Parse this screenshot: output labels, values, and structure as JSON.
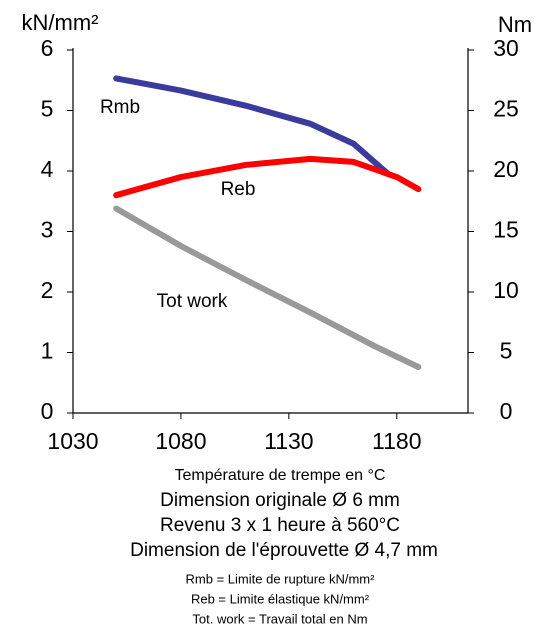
{
  "chart_data": {
    "type": "line",
    "y_label": "kN/mm²",
    "y2_label": "Nm",
    "x_label": "Température de trempe en °C",
    "subtitles": [
      "Dimension originale Ø 6 mm",
      "Revenu 3 x 1 heure à 560°C",
      "Dimension de l'éprouvette Ø 4,7 mm"
    ],
    "notes": [
      "Rmb = Limite de rupture kN/mm²",
      "Reb = Limite élastique kN/mm²",
      "Tot. work = Travail total en Nm"
    ],
    "xlim": [
      1030,
      1213
    ],
    "xticks": [
      1030,
      1080,
      1130,
      1180
    ],
    "ylim": [
      0,
      6
    ],
    "yticks": [
      0,
      1,
      2,
      3,
      4,
      5,
      6
    ],
    "y2lim": [
      0,
      30
    ],
    "y2ticks": [
      0,
      5,
      10,
      15,
      20,
      25,
      30
    ],
    "series": [
      {
        "name": "Rmb",
        "color": "#3b3b9c",
        "x": [
          1050,
          1080,
          1110,
          1140,
          1160,
          1176
        ],
        "values": [
          5.53,
          5.33,
          5.08,
          4.78,
          4.45,
          3.95
        ]
      },
      {
        "name": "Reb",
        "color": "#ff0000",
        "x": [
          1050,
          1080,
          1110,
          1140,
          1160,
          1180,
          1190
        ],
        "values": [
          3.6,
          3.9,
          4.1,
          4.2,
          4.15,
          3.9,
          3.7
        ]
      },
      {
        "name": "Tot work",
        "color": "#999999",
        "axis": "y2",
        "x": [
          1050,
          1080,
          1110,
          1140,
          1170,
          1190
        ],
        "values": [
          16.9,
          13.8,
          11,
          8.3,
          5.5,
          3.8
        ]
      }
    ]
  }
}
